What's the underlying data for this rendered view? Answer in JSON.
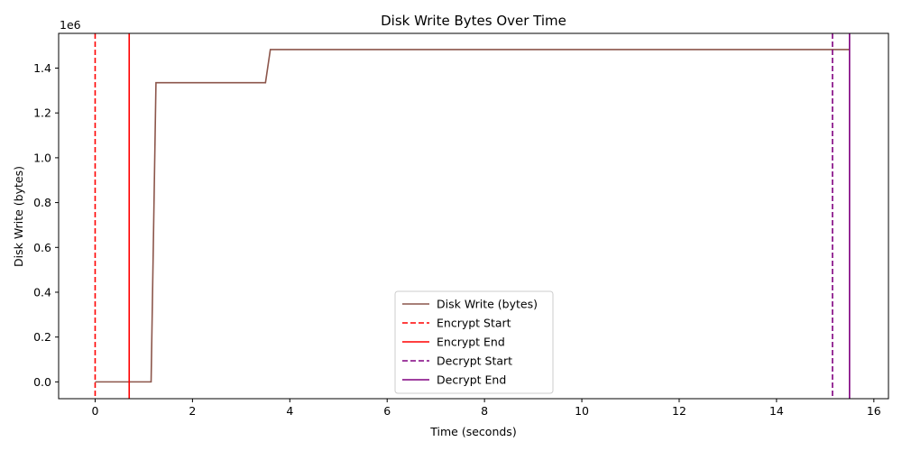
{
  "chart_data": {
    "type": "line",
    "title": "Disk Write Bytes Over Time",
    "xlabel": "Time (seconds)",
    "ylabel": "Disk Write (bytes)",
    "y_multiplier_label": "1e6",
    "xlim": [
      -0.75,
      16.3
    ],
    "ylim": [
      -75000,
      1555000
    ],
    "x_ticks": [
      0,
      2,
      4,
      6,
      8,
      10,
      12,
      14,
      16
    ],
    "x_tick_labels": [
      "0",
      "2",
      "4",
      "6",
      "8",
      "10",
      "12",
      "14",
      "16"
    ],
    "y_ticks": [
      0,
      200000,
      400000,
      600000,
      800000,
      1000000,
      1200000,
      1400000
    ],
    "y_tick_labels": [
      "0.0",
      "0.2",
      "0.4",
      "0.6",
      "0.8",
      "1.0",
      "1.2",
      "1.4"
    ],
    "grid": false,
    "legend_position": "bottom-center",
    "series": [
      {
        "name": "Disk Write (bytes)",
        "color": "#8c564b",
        "style": "solid",
        "x": [
          0,
          1.15,
          1.25,
          3.5,
          3.6,
          15.5
        ],
        "y": [
          0,
          0,
          1335000,
          1335000,
          1483000,
          1483000
        ]
      }
    ],
    "vlines": [
      {
        "name": "Encrypt Start",
        "x": 0.0,
        "color": "#ff0000",
        "style": "dashed"
      },
      {
        "name": "Encrypt End",
        "x": 0.7,
        "color": "#ff0000",
        "style": "solid"
      },
      {
        "name": "Decrypt Start",
        "x": 15.15,
        "color": "#800080",
        "style": "dashed"
      },
      {
        "name": "Decrypt End",
        "x": 15.5,
        "color": "#800080",
        "style": "solid"
      }
    ]
  }
}
